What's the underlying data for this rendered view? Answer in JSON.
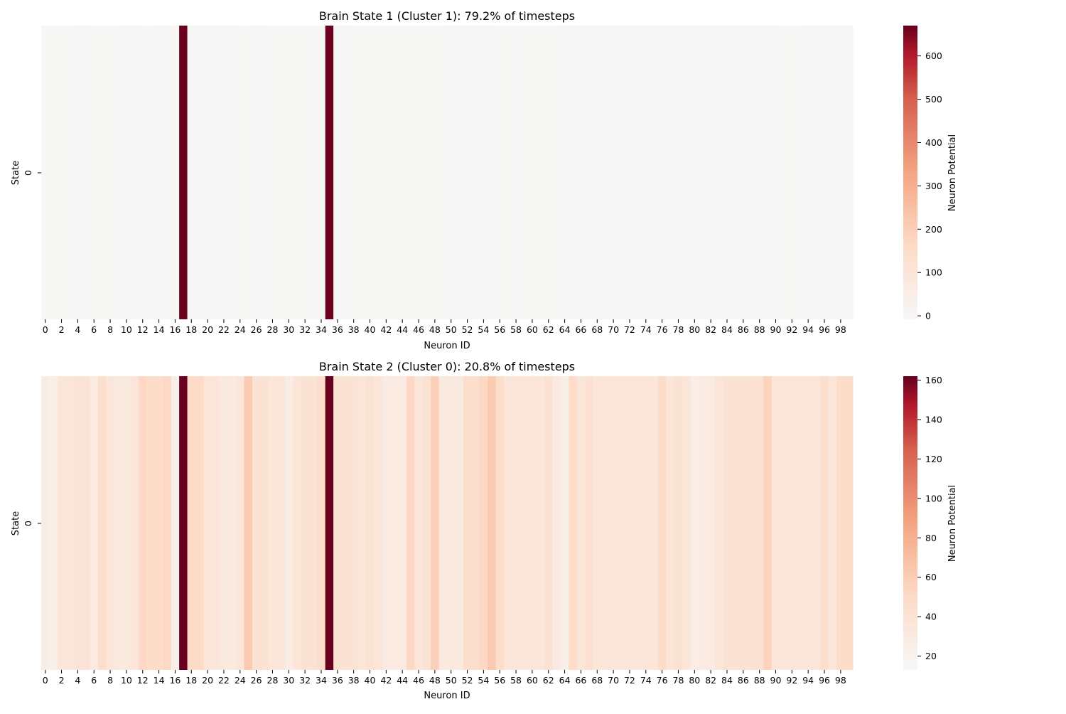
{
  "chart_data": [
    {
      "type": "heatmap",
      "title": "Brain State 1 (Cluster 1): 79.2% of timesteps",
      "xlabel": "Neuron ID",
      "ylabel": "State",
      "y_ticks": [
        "0"
      ],
      "colorbar_label": "Neuron Potential",
      "colorbar_range": [
        -8,
        670
      ],
      "colorbar_ticks": [
        0,
        100,
        200,
        300,
        400,
        500,
        600
      ],
      "colormap": "RdBu_r (positive half)",
      "values": [
        -5,
        -5,
        -5,
        -5,
        -4,
        -4,
        -5,
        -5,
        -5,
        -5,
        -4,
        -4,
        -5,
        -5,
        -4,
        -4,
        -5,
        668,
        -4,
        -4,
        -3,
        -3,
        -4,
        -4,
        -5,
        -5,
        -3,
        -4,
        -5,
        -5,
        -5,
        -5,
        -5,
        -5,
        -5,
        668,
        -4,
        -4,
        -5,
        -5,
        -5,
        -5,
        -5,
        -5,
        -5,
        -5,
        -5,
        -5,
        -5,
        -5,
        -4,
        -4,
        -4,
        -4,
        -4,
        -4,
        -5,
        -5,
        -5,
        -5,
        -5,
        -5,
        -5,
        -5,
        -4,
        -4,
        -4,
        -4,
        -4,
        -4,
        -4,
        -4,
        -4,
        -4,
        -4,
        -4,
        -4,
        -4,
        -4,
        -4,
        -3,
        -3,
        -4,
        -4,
        -4,
        -4,
        -4,
        -4,
        -4,
        -4,
        -3,
        -5,
        -5,
        -5,
        -4,
        -4,
        -4,
        -4,
        -3,
        -3
      ]
    },
    {
      "type": "heatmap",
      "title": "Brain State 2 (Cluster 0): 20.8% of timesteps",
      "xlabel": "Neuron ID",
      "ylabel": "State",
      "y_ticks": [
        "0"
      ],
      "colorbar_label": "Neuron Potential",
      "colorbar_range": [
        13,
        162
      ],
      "colorbar_ticks": [
        20,
        40,
        60,
        80,
        100,
        120,
        140,
        160
      ],
      "colormap": "RdBu_r (positive half)",
      "values": [
        28,
        24,
        36,
        36,
        38,
        38,
        30,
        46,
        36,
        32,
        32,
        36,
        52,
        48,
        48,
        52,
        24,
        162,
        50,
        50,
        36,
        36,
        32,
        32,
        36,
        62,
        40,
        40,
        36,
        36,
        26,
        36,
        40,
        40,
        46,
        162,
        40,
        40,
        40,
        36,
        40,
        36,
        30,
        30,
        30,
        52,
        36,
        40,
        58,
        32,
        32,
        32,
        46,
        46,
        52,
        62,
        46,
        36,
        36,
        36,
        36,
        36,
        42,
        30,
        24,
        48,
        36,
        42,
        36,
        36,
        36,
        36,
        36,
        36,
        36,
        36,
        48,
        36,
        40,
        36,
        26,
        30,
        30,
        36,
        40,
        40,
        40,
        40,
        42,
        56,
        36,
        36,
        36,
        36,
        36,
        36,
        46,
        36,
        48,
        48
      ]
    }
  ]
}
